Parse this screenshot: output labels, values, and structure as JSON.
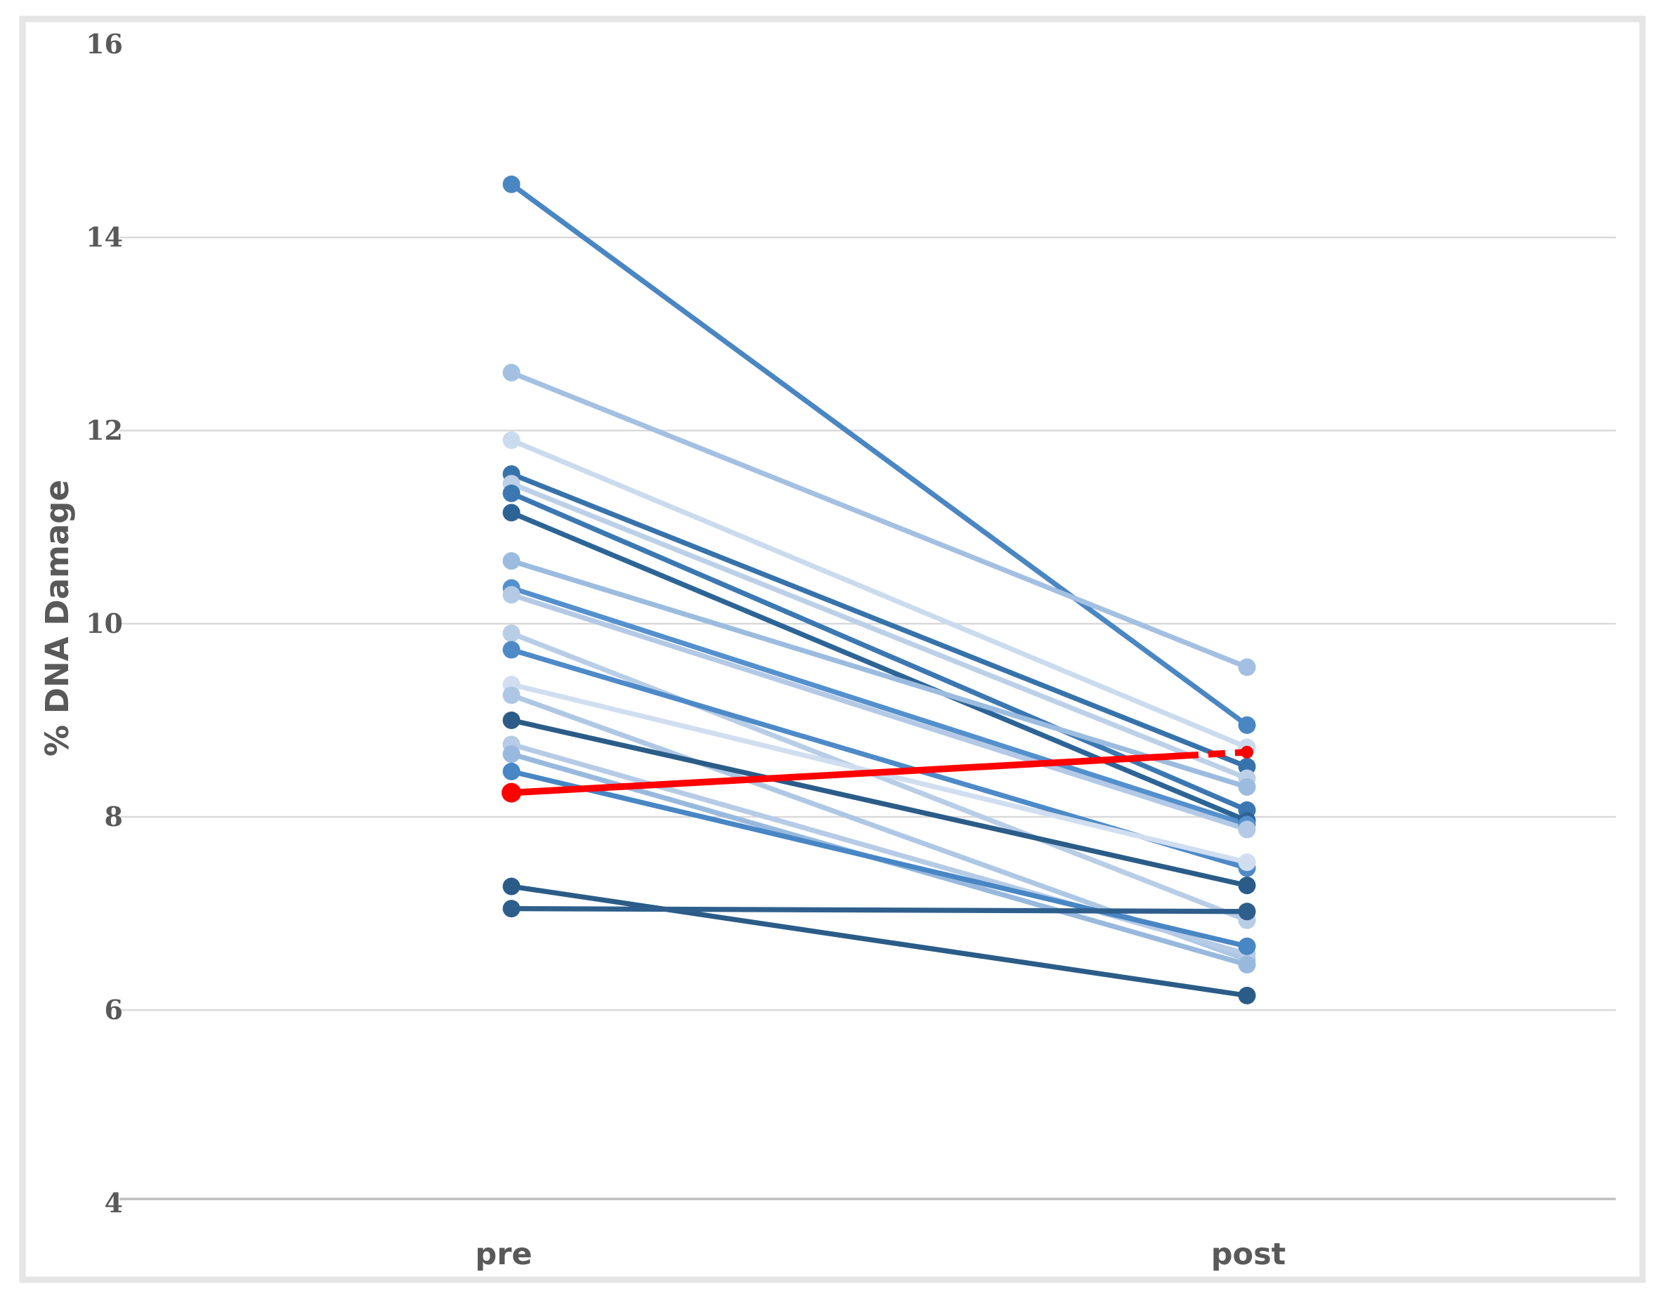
{
  "chart_data": {
    "type": "line",
    "subtype": "paired-slope-chart",
    "ylabel": "% DNA Damage",
    "categories": [
      "pre",
      "post"
    ],
    "yticks": [
      16,
      14,
      12,
      10,
      8,
      6,
      4
    ],
    "ylim": [
      4,
      16
    ],
    "grid": "horizontal gridlines at 6,8,10,12,14; bottom axis line at 4; no gridline at 16",
    "legend": "none",
    "colors": {
      "axis_text": "#595959",
      "gridline": "#d9d9d9",
      "axis_line": "#bfbfbf",
      "frame_border": "#e5e5e5",
      "emphasis_red": "#ff0000"
    },
    "series": [
      {
        "pre": 14.55,
        "post": 8.95,
        "color": "#4a86c2"
      },
      {
        "pre": 12.6,
        "post": 9.55,
        "color": "#a3c0e2"
      },
      {
        "pre": 11.9,
        "post": 8.72,
        "color": "#cbdbee"
      },
      {
        "pre": 11.55,
        "post": 8.52,
        "color": "#3773ab"
      },
      {
        "pre": 11.45,
        "post": 8.4,
        "color": "#bcd0e8"
      },
      {
        "pre": 11.35,
        "post": 8.07,
        "color": "#3b78b2"
      },
      {
        "pre": 11.15,
        "post": 7.96,
        "color": "#2d6496"
      },
      {
        "pre": 10.65,
        "post": 8.31,
        "color": "#9bbcdf"
      },
      {
        "pre": 10.37,
        "post": 7.92,
        "color": "#5490cd"
      },
      {
        "pre": 10.3,
        "post": 7.87,
        "color": "#b3c9e5"
      },
      {
        "pre": 9.9,
        "post": 6.93,
        "color": "#b8cde6"
      },
      {
        "pre": 9.73,
        "post": 7.47,
        "color": "#4e8ac8"
      },
      {
        "pre": 9.37,
        "post": 7.53,
        "color": "#d0def0"
      },
      {
        "pre": 9.26,
        "post": 6.52,
        "color": "#aec7e4"
      },
      {
        "pre": 9.0,
        "post": 7.29,
        "color": "#2b5c88"
      },
      {
        "pre": 8.75,
        "post": 6.58,
        "color": "#b5cbe6"
      },
      {
        "pre": 8.65,
        "post": 6.47,
        "color": "#98b9dd"
      },
      {
        "pre": 8.47,
        "post": 6.66,
        "color": "#4886c4"
      },
      {
        "pre": 7.28,
        "post": 6.15,
        "color": "#2b5c88"
      },
      {
        "pre": 7.05,
        "post": 7.02,
        "color": "#2e5f8c"
      },
      {
        "pre": 8.25,
        "post": 8.67,
        "color": "#ff0000",
        "emphasis": true,
        "dashed_tail": true
      }
    ]
  }
}
